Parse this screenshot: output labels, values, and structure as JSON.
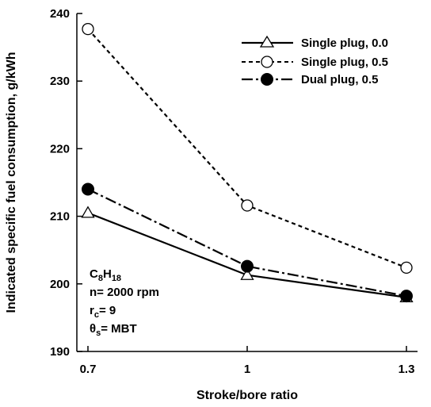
{
  "chart_data": {
    "type": "line",
    "title": "",
    "xlabel": "Stroke/bore ratio",
    "ylabel": "Indicated specific fuel consumption, g/kWh",
    "x": [
      0.7,
      1,
      1.3
    ],
    "xticks": [
      "0.7",
      "1",
      "1.3"
    ],
    "xlim": [
      0.7,
      1.3
    ],
    "ylim": [
      190,
      240
    ],
    "yticks": [
      "190",
      "200",
      "210",
      "220",
      "230",
      "240"
    ],
    "grid": false,
    "legend_position": "top-right",
    "series": [
      {
        "name": "Single plug, 0.0",
        "values": [
          210.5,
          201.3,
          198.0
        ],
        "line_style": "solid",
        "marker": "open-triangle",
        "color": "#000000"
      },
      {
        "name": "Single plug, 0.5",
        "values": [
          237.7,
          211.6,
          202.4
        ],
        "line_style": "dashed",
        "marker": "open-circle",
        "color": "#000000"
      },
      {
        "name": "Dual plug, 0.5",
        "values": [
          214.0,
          202.6,
          198.2
        ],
        "line_style": "dash-dot",
        "marker": "filled-circle",
        "color": "#000000"
      }
    ],
    "annotations": {
      "fuel_base": "C",
      "fuel_sub1": "8",
      "fuel_mid": "H",
      "fuel_sub2": "18",
      "speed": "n= 2000 rpm",
      "rc_base": "r",
      "rc_sub": "c",
      "rc_rest": "= 9",
      "theta_base": "θ",
      "theta_sub": "s",
      "theta_rest": "= MBT"
    }
  }
}
